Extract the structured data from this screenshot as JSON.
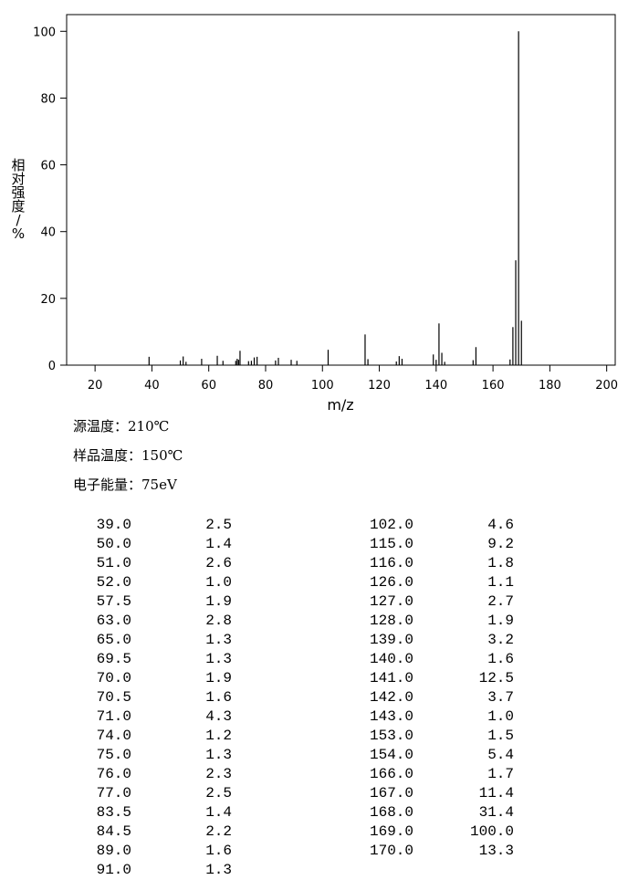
{
  "chart_data": {
    "type": "bar",
    "xlabel": "m/z",
    "ylabel": [
      "相",
      "对",
      "强",
      "度",
      "/",
      "%"
    ],
    "x": [
      39.0,
      50.0,
      51.0,
      52.0,
      57.5,
      63.0,
      65.0,
      69.5,
      70.0,
      70.5,
      71.0,
      74.0,
      75.0,
      76.0,
      77.0,
      83.5,
      84.5,
      89.0,
      91.0,
      102.0,
      115.0,
      116.0,
      126.0,
      127.0,
      128.0,
      139.0,
      140.0,
      141.0,
      142.0,
      143.0,
      153.0,
      154.0,
      166.0,
      167.0,
      168.0,
      169.0,
      170.0
    ],
    "values": [
      2.5,
      1.4,
      2.6,
      1.0,
      1.9,
      2.8,
      1.3,
      1.3,
      1.9,
      1.6,
      4.3,
      1.2,
      1.3,
      2.3,
      2.5,
      1.4,
      2.2,
      1.6,
      1.3,
      4.6,
      9.2,
      1.8,
      1.1,
      2.7,
      1.9,
      3.2,
      1.6,
      12.5,
      3.7,
      1.0,
      1.5,
      5.4,
      1.7,
      11.4,
      31.4,
      100.0,
      13.3
    ],
    "color": "#000000",
    "xlim": [
      10,
      203
    ],
    "xticks": [
      20,
      40,
      60,
      80,
      100,
      120,
      140,
      160,
      180,
      200
    ],
    "ylim": [
      0,
      105
    ],
    "yticks": [
      0,
      20,
      40,
      60,
      80,
      100
    ]
  },
  "info": [
    "源温度：210℃",
    "样品温度：150℃",
    "电子能量：75eV"
  ],
  "peak_table": {
    "rows": [
      [
        "39.0",
        "2.5"
      ],
      [
        "50.0",
        "1.4"
      ],
      [
        "51.0",
        "2.6"
      ],
      [
        "52.0",
        "1.0"
      ],
      [
        "57.5",
        "1.9"
      ],
      [
        "63.0",
        "2.8"
      ],
      [
        "65.0",
        "1.3"
      ],
      [
        "69.5",
        "1.3"
      ],
      [
        "70.0",
        "1.9"
      ],
      [
        "70.5",
        "1.6"
      ],
      [
        "71.0",
        "4.3"
      ],
      [
        "74.0",
        "1.2"
      ],
      [
        "75.0",
        "1.3"
      ],
      [
        "76.0",
        "2.3"
      ],
      [
        "77.0",
        "2.5"
      ],
      [
        "83.5",
        "1.4"
      ],
      [
        "84.5",
        "2.2"
      ],
      [
        "89.0",
        "1.6"
      ],
      [
        "91.0",
        "1.3"
      ],
      [
        "102.0",
        "4.6"
      ],
      [
        "115.0",
        "9.2"
      ],
      [
        "116.0",
        "1.8"
      ],
      [
        "126.0",
        "1.1"
      ],
      [
        "127.0",
        "2.7"
      ],
      [
        "128.0",
        "1.9"
      ],
      [
        "139.0",
        "3.2"
      ],
      [
        "140.0",
        "1.6"
      ],
      [
        "141.0",
        "12.5"
      ],
      [
        "142.0",
        "3.7"
      ],
      [
        "143.0",
        "1.0"
      ],
      [
        "153.0",
        "1.5"
      ],
      [
        "154.0",
        "5.4"
      ],
      [
        "166.0",
        "1.7"
      ],
      [
        "167.0",
        "11.4"
      ],
      [
        "168.0",
        "31.4"
      ],
      [
        "169.0",
        "100.0"
      ],
      [
        "170.0",
        "13.3"
      ]
    ]
  }
}
